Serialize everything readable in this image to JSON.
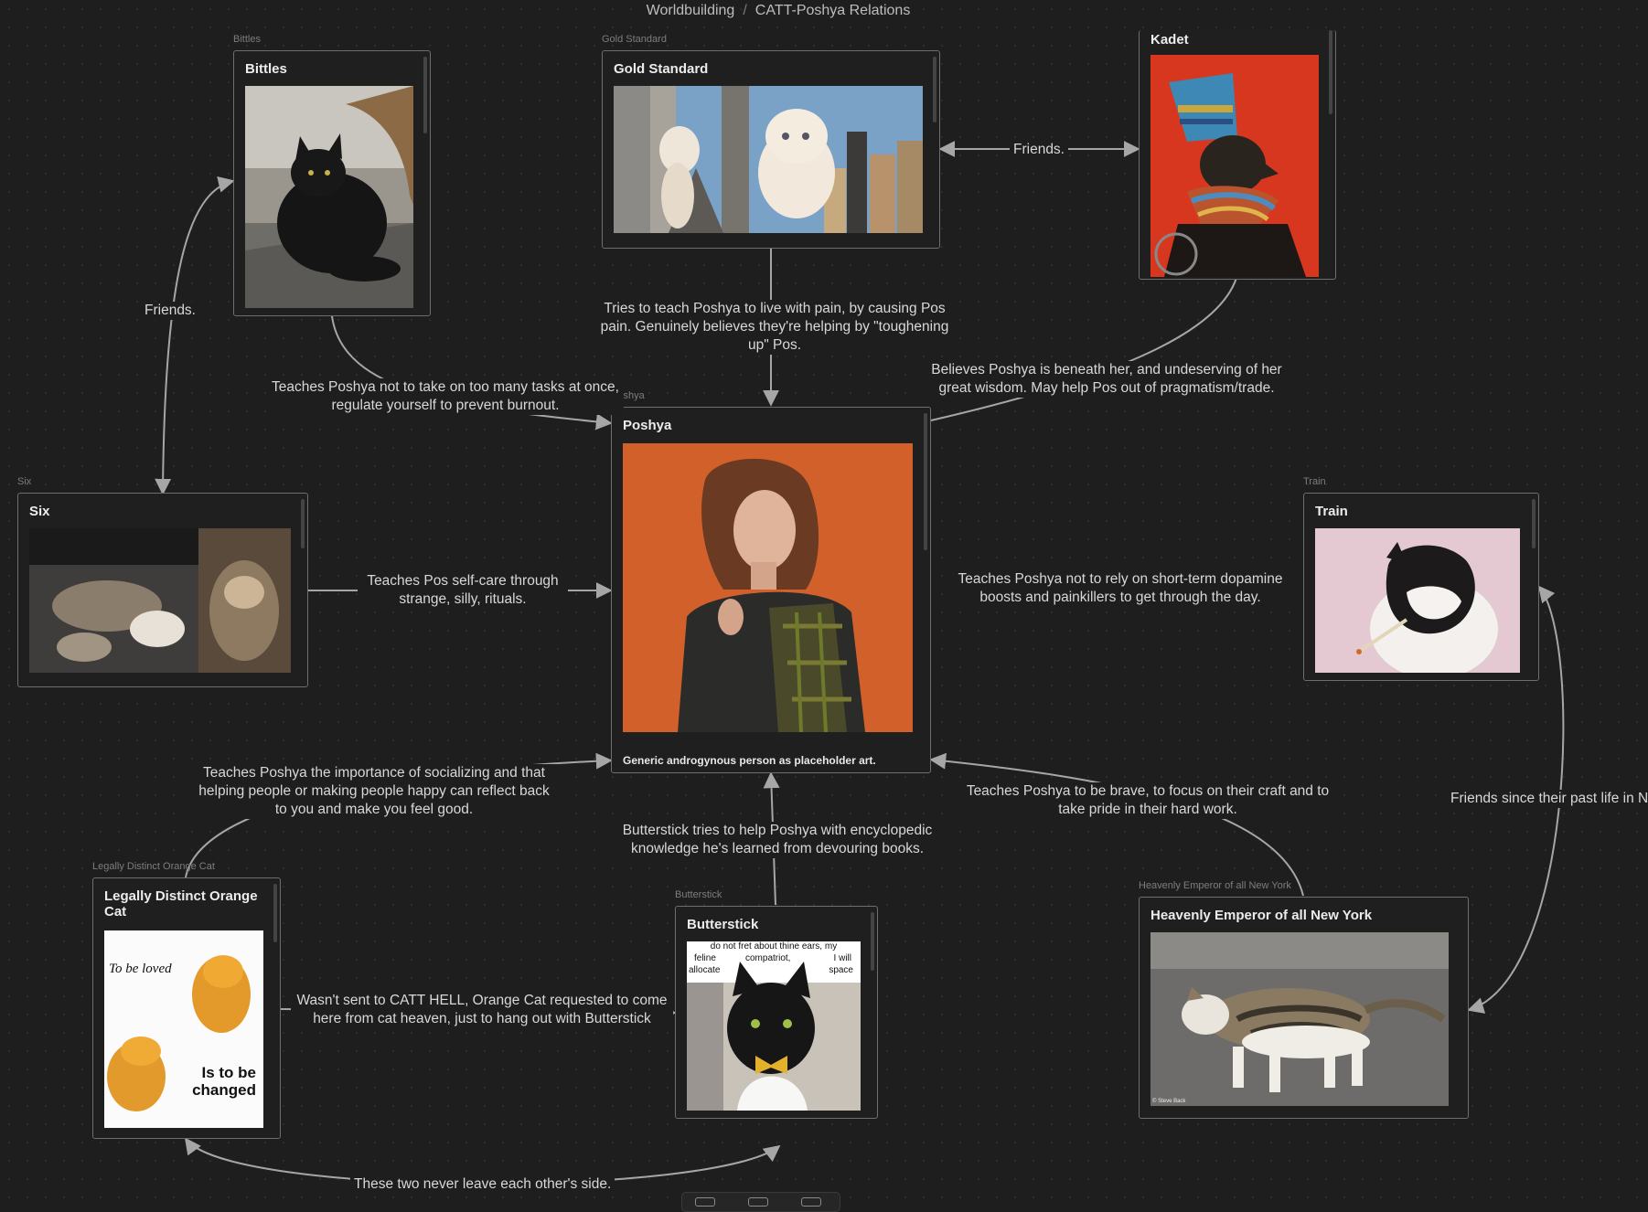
{
  "breadcrumb": {
    "folder": "Worldbuilding",
    "separator": "/",
    "file": "CATT-Poshya Relations"
  },
  "nodes": {
    "bittles": {
      "label": "Bittles",
      "title": "Bittles"
    },
    "gold": {
      "label": "Gold Standard",
      "title": "Gold Standard"
    },
    "kadet": {
      "title": "Kadet"
    },
    "poshya": {
      "label": "Poshya",
      "title": "Poshya",
      "caption": "Generic androgynous person as placeholder art."
    },
    "six": {
      "label": "Six",
      "title": "Six"
    },
    "train": {
      "label": "Train",
      "title": "Train"
    },
    "orange": {
      "label": "Legally Distinct Orange Cat",
      "title": "Legally Distinct Orange Cat",
      "img_text_1": "To be loved",
      "img_text_2": "Is to be",
      "img_text_3": "changed"
    },
    "butterstick": {
      "label": "Butterstick",
      "title": "Butterstick",
      "meme_1": "do not fret about thine ears, my",
      "meme_2": "feline",
      "meme_3": "compatriot,",
      "meme_4": "I will",
      "meme_5": "allocate",
      "meme_6": "space"
    },
    "emperor": {
      "label": "Heavenly Emperor of all New York",
      "title": "Heavenly Emperor of all New York",
      "credit": "© Steve Back"
    }
  },
  "edges": {
    "gold_kadet": "Friends.",
    "bittles_six": "Friends.",
    "gold_poshya": "Tries to teach Poshya to live with pain, by causing Pos pain. Genuinely believes they're helping by \"toughening up\" Pos.",
    "kadet_poshya": "Believes Poshya is beneath her, and undeserving of her great wisdom. May help Pos out of pragmatism/trade.",
    "bittles_poshya": "Teaches Poshya not to take on too many tasks at once, regulate yourself to prevent burnout.",
    "six_poshya": "Teaches Pos self-care through strange, silly, rituals.",
    "train_poshya": "Teaches Poshya not to rely on short-term dopamine boosts and painkillers to get through the day.",
    "orange_poshya": "Teaches Poshya the importance of socializing and that helping people or making people happy can reflect back to you and make you feel good.",
    "butterstick_poshya": "Butterstick tries to help Poshya with encyclopedic knowledge he's learned from devouring books.",
    "emperor_poshya": "Teaches Poshya to be brave, to focus on their craft and to take pride in their hard work.",
    "train_emperor": "Friends since their past life in N",
    "orange_butterstick": "Wasn't sent to CATT HELL, Orange Cat requested to come here from cat heaven, just to hang out with Butterstick",
    "butterstick_orange_bottom": "These two never leave each other's side."
  }
}
